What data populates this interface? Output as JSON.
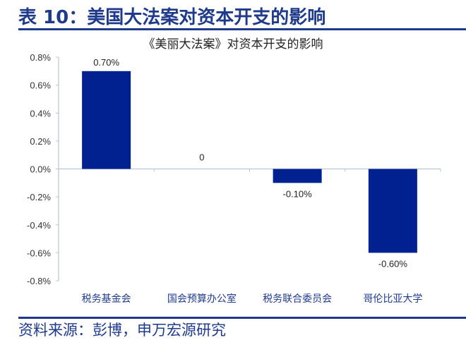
{
  "header": {
    "title": "表 10：美国大法案对资本开支的影响"
  },
  "footer": {
    "source": "资料来源：彭博，申万宏源研究"
  },
  "colors": {
    "bar": "#00218f",
    "title": "#1f3a8a",
    "axis": "#b7c6d4"
  },
  "chart_data": {
    "type": "bar",
    "title": "《美丽大法案》对资本开支的影响",
    "categories": [
      "税务基金会",
      "国会预算办公室",
      "税务联合委员会",
      "哥伦比亚大学"
    ],
    "values": [
      0.7,
      0,
      -0.1,
      -0.6
    ],
    "value_labels": [
      "0.70%",
      "0",
      "-0.10%",
      "-0.60%"
    ],
    "unit": "%",
    "xlabel": "",
    "ylabel": "",
    "ylim": [
      -0.8,
      0.8
    ],
    "yticks": [
      0.8,
      0.6,
      0.4,
      0.2,
      0.0,
      -0.2,
      -0.4,
      -0.6,
      -0.8
    ],
    "ytick_labels": [
      "0.8%",
      "0.6%",
      "0.4%",
      "0.2%",
      "0.0%",
      "-0.2%",
      "-0.4%",
      "-0.6%",
      "-0.8%"
    ],
    "grid": false,
    "legend": null
  }
}
